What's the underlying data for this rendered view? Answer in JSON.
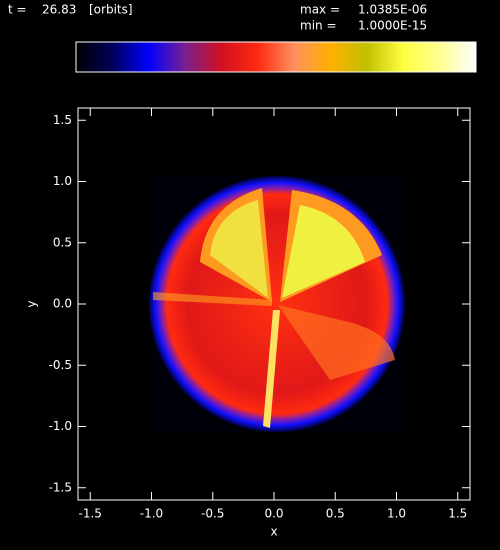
{
  "chart_data": {
    "type": "image",
    "time_label": "t =",
    "time": 26.83,
    "time_unit": "[orbits]",
    "max_label": "max =",
    "max": {
      "value": 1.0385e-06,
      "label": "1.0385E-06"
    },
    "min_label": "min =",
    "min": {
      "value": 1e-15,
      "label": "1.0000E-15"
    },
    "colorbar_colors": [
      "#000000",
      "#00005a",
      "#0000ff",
      "#7a2090",
      "#d01020",
      "#ff2a10",
      "#ff9060",
      "#ffb000",
      "#c0c000",
      "#ffff40",
      "#ffff90",
      "#ffffff"
    ],
    "x_label": "x",
    "y_label": "y",
    "xlim": [
      -1.6,
      1.6
    ],
    "ylim": [
      -1.6,
      1.6
    ],
    "xticks": [
      -1.5,
      {
        "value": -1,
        "label": "-1.0"
      },
      -0.5,
      {
        "value": 0,
        "label": "0.0"
      },
      0.5,
      {
        "value": 1,
        "label": "1.0"
      },
      1.5
    ],
    "yticks": [
      -1.5,
      {
        "value": -1,
        "label": "-1.0"
      },
      -0.5,
      {
        "value": 0,
        "label": "0.0"
      },
      0.5,
      {
        "value": 1,
        "label": "1.0"
      },
      1.5
    ]
  }
}
